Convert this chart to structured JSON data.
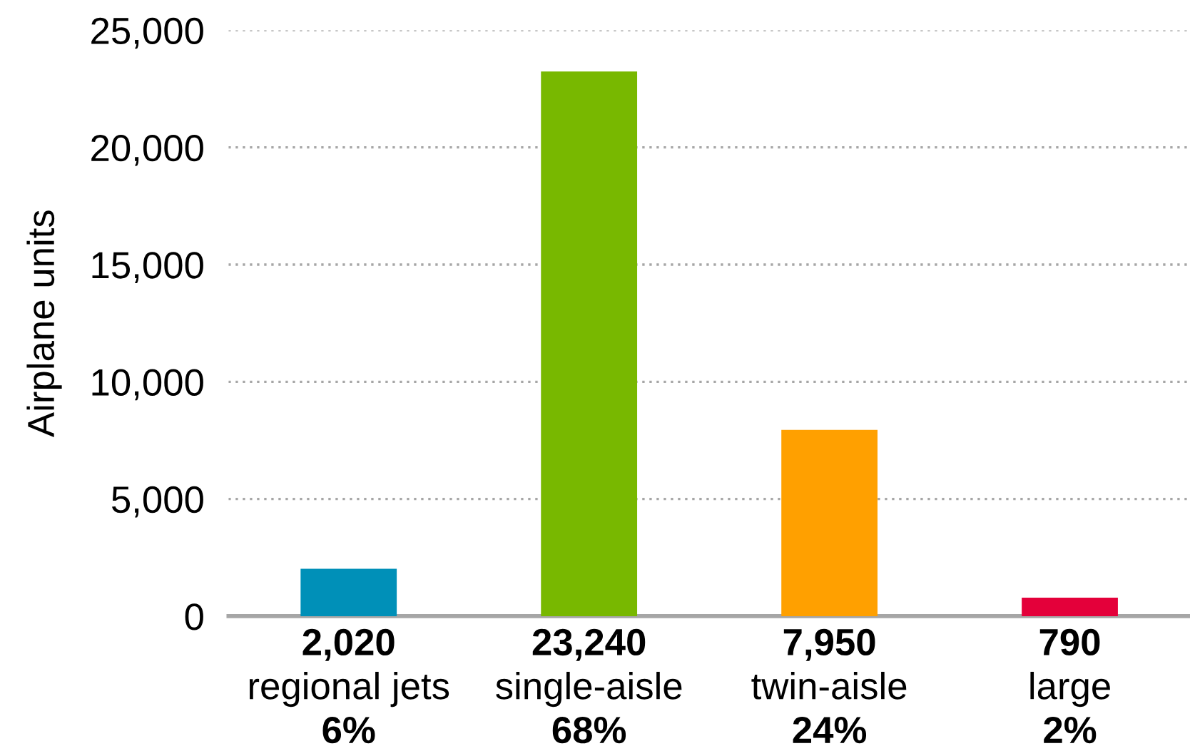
{
  "chart_data": {
    "type": "bar",
    "ylabel": "Airplane units",
    "categories": [
      "regional jets",
      "single-aisle",
      "twin-aisle",
      "large"
    ],
    "values": [
      2020,
      23240,
      7950,
      790
    ],
    "value_labels": [
      "2,020",
      "23,240",
      "7,950",
      "790"
    ],
    "colors": [
      "#0090b8",
      "#78b800",
      "#ffa000",
      "#e4003a"
    ],
    "annotations": [
      "6%",
      "68%",
      "24%",
      "2%"
    ],
    "ylim": [
      0,
      25000
    ],
    "yticks": [
      {
        "value": 0,
        "label": "0"
      },
      {
        "value": 5000,
        "label": "5,000"
      },
      {
        "value": 10000,
        "label": "10,000"
      },
      {
        "value": 15000,
        "label": "15,000"
      },
      {
        "value": 20000,
        "label": "20,000"
      },
      {
        "value": 25000,
        "label": "25,000"
      }
    ],
    "grid": "y",
    "legend": false
  }
}
